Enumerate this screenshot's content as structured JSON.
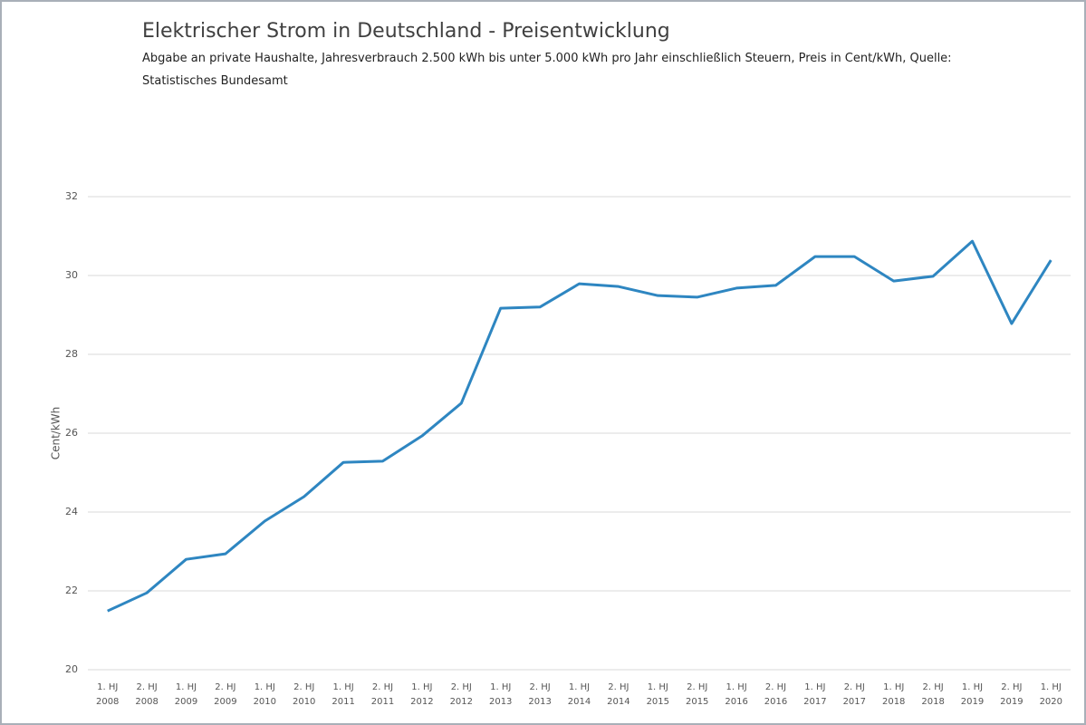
{
  "chart_data": {
    "type": "line",
    "title": "Elektrischer Strom in Deutschland - Preisentwicklung",
    "subtitle": "Abgabe an private Haushalte, Jahresverbrauch 2.500 kWh bis unter 5.000 kWh pro Jahr einschließlich Steuern, Preis in Cent/kWh, Quelle: Statistisches Bundesamt",
    "y_label": "Cent/kWh",
    "categories": [
      "1. HJ\n2008",
      "2. HJ\n2008",
      "1. HJ\n2009",
      "2. HJ\n2009",
      "1. HJ\n2010",
      "2. HJ\n2010",
      "1. HJ\n2011",
      "2. HJ\n2011",
      "1. HJ\n2012",
      "2. HJ\n2012",
      "1. HJ\n2013",
      "2. HJ\n2013",
      "1. HJ\n2014",
      "2. HJ\n2014",
      "1. HJ\n2015",
      "2. HJ\n2015",
      "1. HJ\n2016",
      "2. HJ\n2016",
      "1. HJ\n2017",
      "2. HJ\n2017",
      "1. HJ\n2018",
      "2. HJ\n2018",
      "1. HJ\n2019",
      "2. HJ\n2019",
      "1. HJ\n2020"
    ],
    "values": [
      21.49,
      21.95,
      22.8,
      22.94,
      23.77,
      24.39,
      25.26,
      25.29,
      25.93,
      26.76,
      29.17,
      29.2,
      29.79,
      29.72,
      29.49,
      29.45,
      29.68,
      29.75,
      30.48,
      30.48,
      29.86,
      29.98,
      30.87,
      28.78,
      30.39
    ],
    "color": "#2e86c1",
    "ylim": [
      20,
      32
    ],
    "yticks": [
      20,
      22,
      24,
      26,
      28,
      30,
      32
    ],
    "grid": true
  }
}
